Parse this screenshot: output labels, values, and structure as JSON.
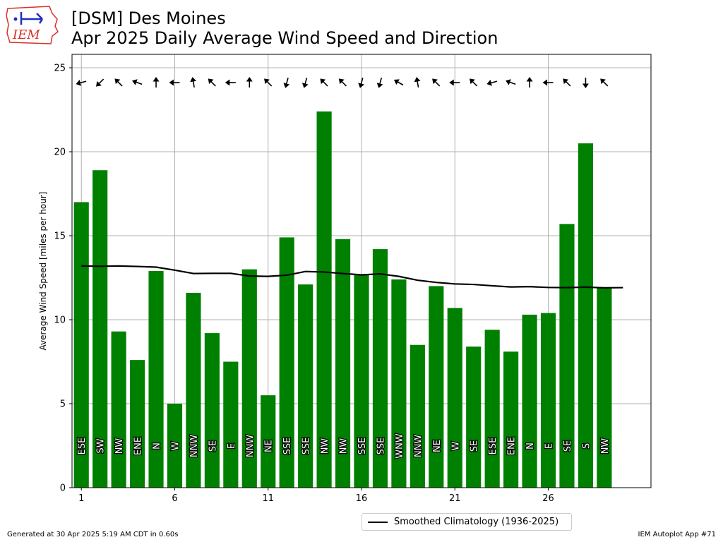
{
  "header": {
    "line1": "[DSM] Des Moines",
    "line2": "Apr 2025 Daily Average Wind Speed and Direction"
  },
  "logo": {
    "text": "IEM"
  },
  "footer": {
    "left": "Generated at 30 Apr 2025 5:19 AM CDT in 0.60s",
    "right": "IEM Autoplot App #71"
  },
  "legend": {
    "label": "Smoothed Climatology (1936-2025)"
  },
  "colors": {
    "bar": "#008000",
    "climo": "#000000",
    "grid": "#b0b0b0",
    "arrow": "#000000",
    "logo_red": "#d9302b",
    "logo_blue": "#1f2fbf"
  },
  "chart_data": {
    "type": "bar",
    "x": [
      1,
      2,
      3,
      4,
      5,
      6,
      7,
      8,
      9,
      10,
      11,
      12,
      13,
      14,
      15,
      16,
      17,
      18,
      19,
      20,
      21,
      22,
      23,
      24,
      25,
      26,
      27,
      28,
      29
    ],
    "values": [
      17.0,
      18.9,
      9.3,
      7.6,
      12.9,
      5.0,
      11.6,
      9.2,
      7.5,
      13.0,
      5.5,
      14.9,
      12.1,
      22.4,
      14.8,
      12.7,
      14.2,
      12.4,
      8.5,
      12.0,
      10.7,
      8.4,
      9.4,
      8.1,
      10.3,
      10.4,
      15.7,
      20.5,
      11.9
    ],
    "directions": [
      "ESE",
      "SW",
      "NW",
      "ENE",
      "N",
      "W",
      "NNW",
      "SE",
      "E",
      "NNW",
      "NE",
      "SSE",
      "SSE",
      "NW",
      "NW",
      "SSE",
      "SSE",
      "WNW",
      "NNW",
      "NE",
      "W",
      "SE",
      "ESE",
      "ENE",
      "N",
      "E",
      "SE",
      "S",
      "NW"
    ],
    "arrow_angles_deg": [
      -105,
      -135,
      -45,
      -70,
      0,
      -90,
      -10,
      -45,
      -90,
      0,
      -45,
      -165,
      -165,
      -45,
      -45,
      -165,
      -165,
      -60,
      -10,
      -45,
      -90,
      -45,
      -105,
      -70,
      0,
      -90,
      -45,
      180,
      -45
    ],
    "climatology": {
      "name": "Smoothed Climatology (1936-2025)",
      "x": [
        1,
        2,
        3,
        4,
        5,
        6,
        7,
        8,
        9,
        10,
        11,
        12,
        13,
        14,
        15,
        16,
        17,
        18,
        19,
        20,
        21,
        22,
        23,
        24,
        25,
        26,
        27,
        28,
        29,
        30
      ],
      "values": [
        13.2,
        13.18,
        13.2,
        13.17,
        13.13,
        12.95,
        12.75,
        12.76,
        12.76,
        12.6,
        12.58,
        12.65,
        12.87,
        12.84,
        12.75,
        12.67,
        12.73,
        12.58,
        12.35,
        12.22,
        12.13,
        12.1,
        12.02,
        11.95,
        11.97,
        11.92,
        11.91,
        11.94,
        11.9,
        11.91
      ]
    },
    "xticks": [
      1,
      6,
      11,
      16,
      21,
      26
    ],
    "yticks": [
      0,
      5,
      10,
      15,
      20,
      25
    ],
    "xlim": [
      0.5,
      31.5
    ],
    "ylim": [
      0,
      25.8
    ],
    "ylabel": "Average Wind Speed [miles per hour]",
    "xlabel": "",
    "grid": true,
    "legend_position": "bottom-center"
  }
}
